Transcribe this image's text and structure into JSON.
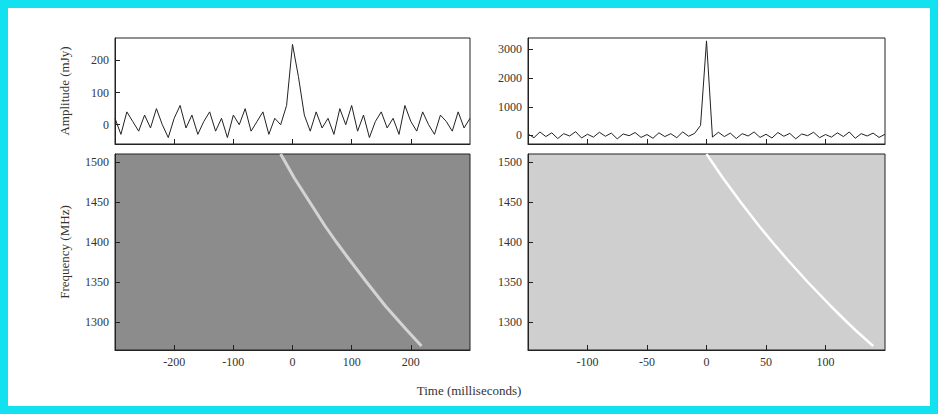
{
  "xlabel": "Time (milliseconds)",
  "chart_data": [
    {
      "type": "line",
      "ylabel": "Amplitude (mJy)",
      "color": "#222222",
      "grid": false,
      "tick_labels": "y",
      "xlim": [
        -300,
        300
      ],
      "xticks": [
        -200,
        -100,
        0,
        100,
        200
      ],
      "ylim": [
        -60,
        270
      ],
      "yticks": [
        0,
        100,
        200
      ],
      "x": [
        -300,
        -290,
        -280,
        -270,
        -260,
        -250,
        -240,
        -230,
        -220,
        -210,
        -200,
        -190,
        -180,
        -170,
        -160,
        -150,
        -140,
        -130,
        -120,
        -110,
        -100,
        -90,
        -80,
        -70,
        -60,
        -50,
        -40,
        -30,
        -20,
        -10,
        0,
        10,
        20,
        30,
        40,
        50,
        60,
        70,
        80,
        90,
        100,
        110,
        120,
        130,
        140,
        150,
        160,
        170,
        180,
        190,
        200,
        210,
        220,
        230,
        240,
        250,
        260,
        270,
        280,
        290,
        300
      ],
      "values": [
        20,
        -30,
        40,
        10,
        -20,
        30,
        -10,
        50,
        0,
        -40,
        20,
        60,
        -10,
        30,
        -30,
        10,
        40,
        -20,
        20,
        -40,
        30,
        0,
        50,
        -20,
        10,
        40,
        -30,
        20,
        0,
        60,
        250,
        150,
        30,
        -20,
        40,
        -10,
        20,
        -30,
        50,
        0,
        60,
        -20,
        30,
        -40,
        10,
        40,
        -10,
        20,
        -30,
        60,
        10,
        -20,
        40,
        0,
        -30,
        30,
        10,
        -20,
        40,
        -10,
        20
      ]
    },
    {
      "type": "line",
      "ylabel": "Frequency (MHz)",
      "color": "#d4d4d4",
      "grid": false,
      "xlim": [
        -300,
        300
      ],
      "xticks": [
        -200,
        -100,
        0,
        100,
        200
      ],
      "ylim": [
        1265,
        1510
      ],
      "yticks": [
        1300,
        1350,
        1400,
        1450,
        1500
      ],
      "x": [
        -20,
        3,
        29,
        55,
        74,
        94,
        125,
        157,
        181,
        193,
        218
      ],
      "values": [
        1510,
        1480,
        1450,
        1420,
        1400,
        1380,
        1350,
        1320,
        1300,
        1290,
        1270
      ]
    },
    {
      "type": "line",
      "color": "#222222",
      "grid": false,
      "tick_labels": "y",
      "xlim": [
        -150,
        150
      ],
      "xticks": [
        -100,
        -50,
        0,
        50,
        100
      ],
      "ylim": [
        -300,
        3400
      ],
      "yticks": [
        0,
        1000,
        2000,
        3000
      ],
      "x": [
        -150,
        -145,
        -140,
        -135,
        -130,
        -125,
        -120,
        -115,
        -110,
        -105,
        -100,
        -95,
        -90,
        -85,
        -80,
        -75,
        -70,
        -65,
        -60,
        -55,
        -50,
        -45,
        -40,
        -35,
        -30,
        -25,
        -20,
        -15,
        -10,
        -5,
        0,
        5,
        10,
        15,
        20,
        25,
        30,
        35,
        40,
        45,
        50,
        55,
        60,
        65,
        70,
        75,
        80,
        85,
        90,
        95,
        100,
        105,
        110,
        115,
        120,
        125,
        130,
        135,
        140,
        145,
        150
      ],
      "values": [
        50,
        -80,
        120,
        -40,
        90,
        -110,
        60,
        -20,
        130,
        -90,
        40,
        -60,
        110,
        -30,
        80,
        -120,
        50,
        -10,
        100,
        -70,
        30,
        -100,
        90,
        -40,
        60,
        -80,
        120,
        -30,
        70,
        350,
        3300,
        -60,
        110,
        -40,
        80,
        -110,
        60,
        -20,
        120,
        -70,
        40,
        -90,
        100,
        -30,
        70,
        -120,
        50,
        -10,
        110,
        -80,
        30,
        -60,
        90,
        -40,
        120,
        -100,
        60,
        -20,
        80,
        -70,
        40
      ]
    },
    {
      "type": "line",
      "color": "#ffffff",
      "grid": false,
      "xlim": [
        -150,
        150
      ],
      "xticks": [
        -100,
        -50,
        0,
        50,
        100
      ],
      "ylim": [
        1265,
        1510
      ],
      "yticks": [
        1300,
        1350,
        1400,
        1450,
        1500
      ],
      "x": [
        0,
        13.8,
        28.6,
        44.2,
        55.3,
        66.8,
        85,
        104.4,
        118,
        125,
        140
      ],
      "values": [
        1510,
        1480,
        1450,
        1420,
        1400,
        1380,
        1350,
        1320,
        1300,
        1290,
        1270
      ]
    }
  ]
}
